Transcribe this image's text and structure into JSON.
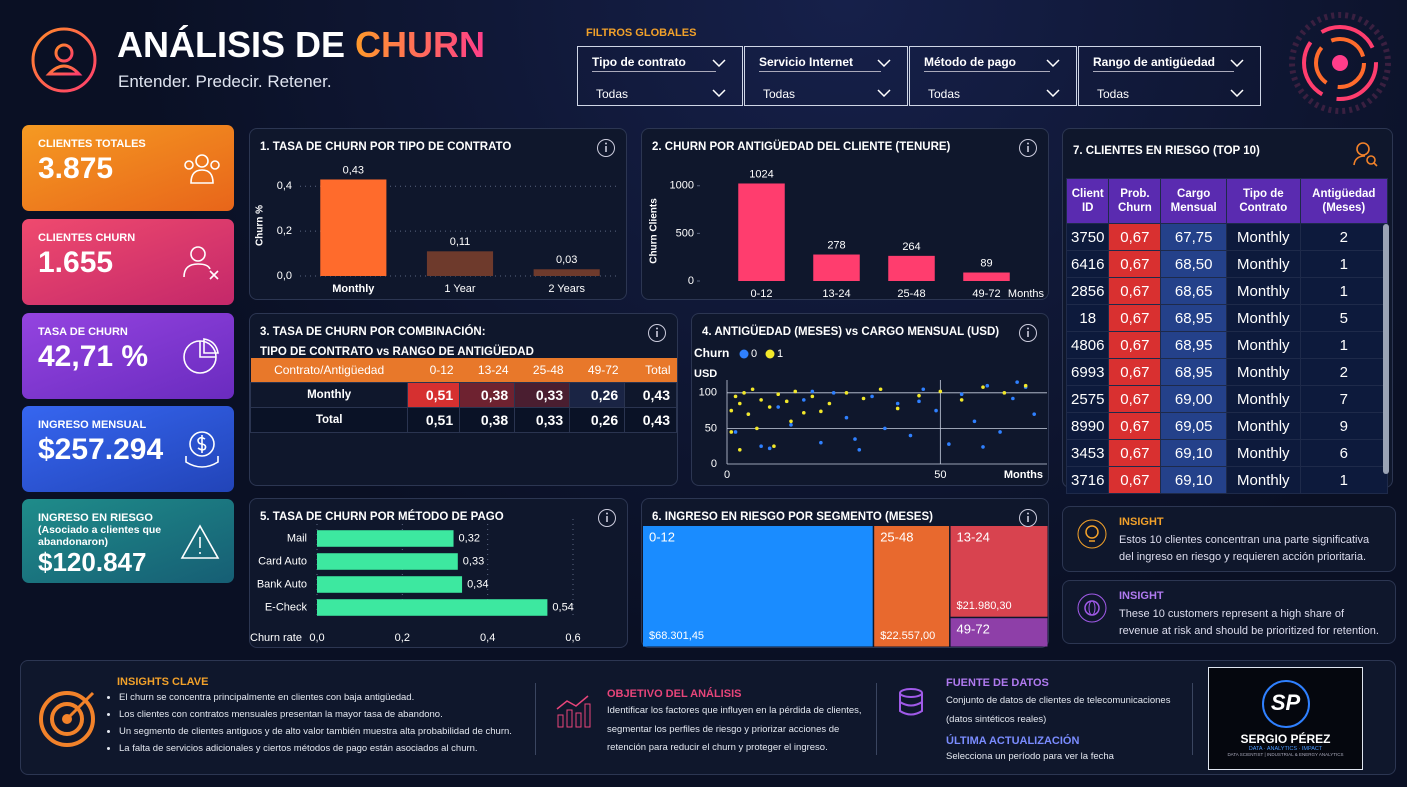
{
  "header": {
    "title_main": "ANÁLISIS DE",
    "title_accent": "CHURN",
    "subtitle": "Entender. Predecir. Retener."
  },
  "filters": {
    "title": "FILTROS GLOBALES",
    "items": [
      {
        "label": "Tipo de contrato",
        "value": "Todas"
      },
      {
        "label": "Servicio Internet",
        "value": "Todas"
      },
      {
        "label": "Método de pago",
        "value": "Todas"
      },
      {
        "label": "Rango de antigüedad",
        "value": "Todas"
      }
    ]
  },
  "kpis": [
    {
      "label": "CLIENTES TOTALES",
      "value": "3.875"
    },
    {
      "label": "CLIENTES CHURN",
      "value": "1.655"
    },
    {
      "label": "TASA DE CHURN",
      "value": "42,71 %"
    },
    {
      "label": "INGRESO MENSUAL",
      "value": "$257.294"
    },
    {
      "label": "INGRESO EN RIESGO",
      "note": "(Asociado a clientes que abandonaron)",
      "value": "$120.847"
    }
  ],
  "chart_data": [
    {
      "type": "bar",
      "title": "1. TASA DE CHURN POR TIPO DE CONTRATO",
      "ylabel": "Churn %",
      "categories": [
        "Monthly",
        "1 Year",
        "2 Years"
      ],
      "values": [
        0.43,
        0.11,
        0.03
      ],
      "value_labels": [
        "0,43",
        "0,11",
        "0,03"
      ],
      "colors": [
        "#ff6b2c",
        "#6e3a2c",
        "#6e3a2c"
      ],
      "ylim": [
        0,
        0.45
      ],
      "yticks": [
        {
          "value": 0,
          "label": "0,0"
        },
        {
          "value": 0.2,
          "label": "0,2"
        },
        {
          "value": 0.4,
          "label": "0,4"
        }
      ],
      "grid": true
    },
    {
      "type": "bar",
      "title": "2. CHURN POR ANTIGÜEDAD DEL CLIENTE (TENURE)",
      "ylabel": "Churn Clients",
      "xlabel": "Months",
      "categories": [
        "0-12",
        "13-24",
        "25-48",
        "49-72"
      ],
      "values": [
        1024,
        278,
        264,
        89
      ],
      "colors": [
        "#ff3d6e",
        "#ff3d6e",
        "#ff3d6e",
        "#ff3d6e"
      ],
      "ylim": [
        0,
        1050
      ],
      "yticks": [
        0,
        500,
        1000
      ],
      "grid": false
    },
    {
      "type": "scatter",
      "title": "4. ANTIGÜEDAD (MESES) vs CARGO MENSUAL (USD)",
      "legend_title": "Churn",
      "xlabel": "Months",
      "ylabel": "USD",
      "xlim": [
        0,
        75
      ],
      "ylim": [
        0,
        118
      ],
      "xticks": [
        0,
        50
      ],
      "yticks": [
        0,
        50,
        100
      ],
      "grid": true,
      "series": [
        {
          "name": "0",
          "color": "#2f80ff",
          "x": [
            2,
            5,
            8,
            12,
            15,
            18,
            22,
            25,
            28,
            31,
            34,
            37,
            40,
            43,
            46,
            49,
            52,
            55,
            58,
            61,
            64,
            67,
            70,
            72,
            10,
            20,
            30,
            45,
            60,
            68
          ],
          "y": [
            45,
            70,
            25,
            80,
            55,
            90,
            30,
            100,
            65,
            20,
            95,
            50,
            85,
            40,
            105,
            75,
            28,
            98,
            60,
            110,
            45,
            92,
            108,
            70,
            22,
            102,
            35,
            88,
            24,
            115
          ]
        },
        {
          "name": "1",
          "color": "#f2e82a",
          "x": [
            1,
            2,
            3,
            4,
            5,
            6,
            8,
            10,
            12,
            14,
            16,
            18,
            20,
            24,
            28,
            32,
            36,
            40,
            45,
            50,
            55,
            60,
            65,
            70,
            1,
            3,
            7,
            11,
            15,
            22
          ],
          "y": [
            75,
            95,
            85,
            100,
            70,
            105,
            90,
            80,
            98,
            88,
            102,
            72,
            95,
            85,
            100,
            92,
            105,
            78,
            96,
            102,
            90,
            108,
            100,
            110,
            45,
            20,
            50,
            25,
            60,
            74
          ]
        }
      ]
    },
    {
      "type": "hbar",
      "title": "5. TASA DE CHURN POR MÉTODO DE PAGO",
      "xlabel": "Churn rate",
      "categories": [
        "Mail",
        "Card Auto",
        "Bank Auto",
        "E-Check"
      ],
      "values": [
        0.32,
        0.33,
        0.34,
        0.54
      ],
      "value_labels": [
        "0,32",
        "0,33",
        "0,34",
        "0,54"
      ],
      "color": "#3de8a0",
      "xlim": [
        0,
        0.6
      ],
      "xticks": [
        {
          "value": 0,
          "label": "0,0"
        },
        {
          "value": 0.2,
          "label": "0,2"
        },
        {
          "value": 0.4,
          "label": "0,4"
        },
        {
          "value": 0.6,
          "label": "0,6"
        }
      ],
      "grid": true
    },
    {
      "type": "treemap",
      "title": "6. INGRESO EN RIESGO POR SEGMENTO  (MESES)",
      "categories": [
        "0-12",
        "25-48",
        "13-24",
        "49-72"
      ],
      "values": [
        68301.45,
        22557.0,
        21980.3,
        7100
      ],
      "value_labels": [
        "$68.301,45",
        "$22.557,00",
        "$21.980,30",
        null
      ],
      "colors": [
        "#1a8cff",
        "#e8692e",
        "#d8434f",
        "#8e3fa8"
      ]
    }
  ],
  "combo_table": {
    "title": "3. TASA DE CHURN POR COMBINACIÓN:",
    "subtitle": "TIPO DE CONTRATO vs RANGO DE ANTIGÜEDAD",
    "columns": [
      "Contrato/Antigüedad",
      "0-12",
      "13-24",
      "25-48",
      "49-72",
      "Total"
    ],
    "rows": [
      [
        "Monthly",
        "0,51",
        "0,38",
        "0,33",
        "0,26",
        "0,43"
      ],
      [
        "Total",
        "0,51",
        "0,38",
        "0,33",
        "0,26",
        "0,43"
      ]
    ]
  },
  "risk_table": {
    "title": "7. CLIENTES EN RIESGO (TOP 10)",
    "columns": [
      "Client ID",
      "Prob. Churn",
      "Cargo Mensual",
      "Tipo de Contrato",
      "Antigüedad (Meses)"
    ],
    "rows": [
      [
        "3750",
        "0,67",
        "67,75",
        "Monthly",
        "2"
      ],
      [
        "6416",
        "0,67",
        "68,50",
        "Monthly",
        "1"
      ],
      [
        "2856",
        "0,67",
        "68,65",
        "Monthly",
        "1"
      ],
      [
        "18",
        "0,67",
        "68,95",
        "Monthly",
        "5"
      ],
      [
        "4806",
        "0,67",
        "68,95",
        "Monthly",
        "1"
      ],
      [
        "6993",
        "0,67",
        "68,95",
        "Monthly",
        "2"
      ],
      [
        "2575",
        "0,67",
        "69,00",
        "Monthly",
        "7"
      ],
      [
        "8990",
        "0,67",
        "69,05",
        "Monthly",
        "9"
      ],
      [
        "3453",
        "0,67",
        "69,10",
        "Monthly",
        "6"
      ],
      [
        "3716",
        "0,67",
        "69,10",
        "Monthly",
        "1"
      ]
    ]
  },
  "insights": [
    {
      "title": "INSIGHT",
      "text": "Estos 10 clientes concentran una parte significativa del ingreso en riesgo y requieren acción prioritaria."
    },
    {
      "title": "INSIGHT",
      "text": "These 10 customers represent a high share of revenue at risk and should be prioritized for retention."
    }
  ],
  "footer": {
    "insights_title": "INSIGHTS CLAVE",
    "insights": [
      "El churn se concentra principalmente en clientes con baja antigüedad.",
      "Los clientes con contratos mensuales presentan la mayor tasa de abandono.",
      "Un segmento de clientes antiguos y de alto valor también muestra alta probabilidad de churn.",
      "La falta de servicios adicionales y ciertos métodos de pago están asociados al churn."
    ],
    "objective_title": "OBJETIVO DEL ANÁLISIS",
    "objective_text": "Identificar los factores que influyen en la pérdida de clientes, segmentar los perfiles de riesgo y priorizar acciones de retención para reducir el churn y proteger el ingreso.",
    "source_title": "FUENTE DE DATOS",
    "source_text": "Conjunto de datos de clientes de telecomunicaciones (datos sintéticos reales)",
    "update_title": "ÚLTIMA ACTUALIZACIÓN",
    "update_text": "Selecciona un período para ver la fecha",
    "logo_initials": "SP",
    "brand_name": "SERGIO PÉREZ",
    "brand_tagline": "DATA · ANALYTICS · IMPACT",
    "brand_sub": "DATA SCIENTIST | INDUSTRIAL & ENERGY ANALYTICS"
  }
}
